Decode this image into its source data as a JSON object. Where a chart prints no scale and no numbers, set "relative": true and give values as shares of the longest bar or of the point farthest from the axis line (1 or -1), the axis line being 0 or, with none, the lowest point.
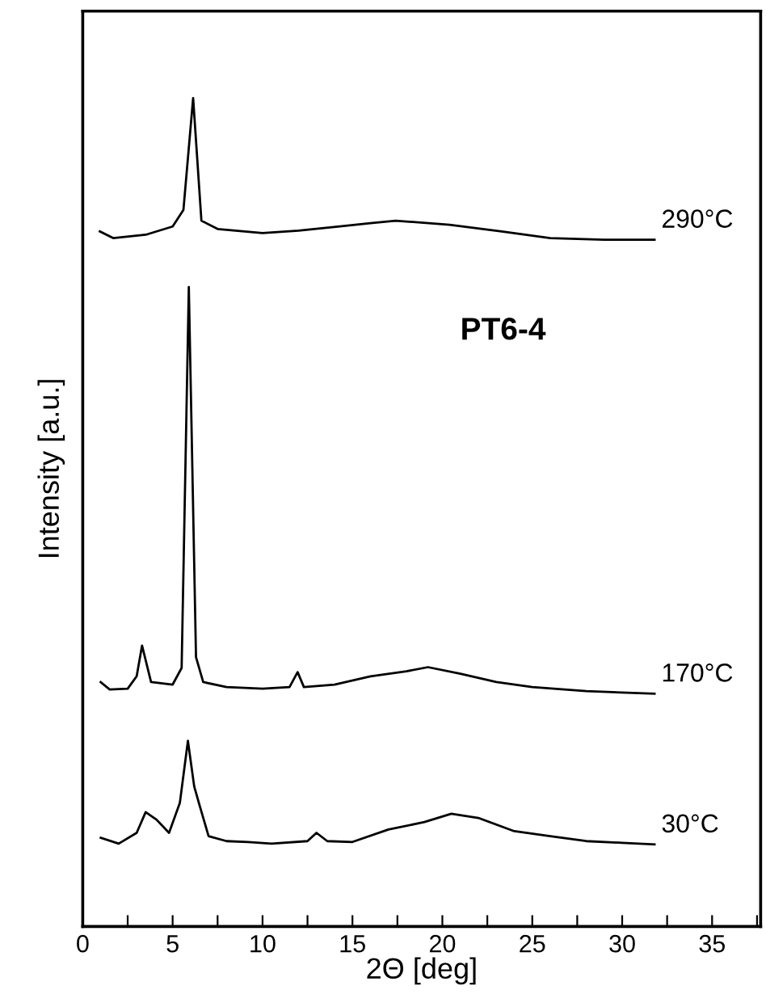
{
  "chart_data": {
    "type": "line",
    "relative": true,
    "xlabel": "2Θ [deg]",
    "ylabel": "Intensity [a.u.]",
    "annotations": [
      "PT6-4"
    ],
    "xlim": [
      0,
      37.7
    ],
    "xticks": [
      0,
      {
        "value": 2.5,
        "label": null
      },
      5,
      {
        "value": 7.5,
        "label": null
      },
      10,
      {
        "value": 12.5,
        "label": null
      },
      15,
      {
        "value": 17.5,
        "label": null
      },
      20,
      {
        "value": 22.5,
        "label": null
      },
      25,
      {
        "value": 27.5,
        "label": null
      },
      30,
      {
        "value": 32.5,
        "label": null
      },
      35,
      {
        "value": 37.5,
        "label": null
      }
    ],
    "grid": false,
    "legend": false,
    "marker": "none",
    "line_style": "solid",
    "tick_labels": "x",
    "series": [
      {
        "name": "290°C",
        "color": "#000000",
        "x": [
          0.95,
          1.69,
          3.5,
          5.0,
          5.6,
          6.14,
          6.6,
          7.5,
          10,
          12,
          14.3,
          16,
          17.4,
          20.4,
          23.3,
          26,
          29,
          31.8
        ],
        "values": [
          0.839,
          0.831,
          0.835,
          0.845,
          0.865,
          1.0,
          0.852,
          0.842,
          0.837,
          0.84,
          0.845,
          0.849,
          0.852,
          0.847,
          0.839,
          0.831,
          0.829,
          0.829
        ]
      },
      {
        "name": "170°C",
        "color": "#000000",
        "x": [
          1.0,
          1.5,
          2.5,
          3.0,
          3.3,
          3.8,
          5.0,
          5.5,
          5.9,
          6.3,
          6.7,
          8,
          10,
          11.5,
          11.95,
          12.3,
          14,
          16,
          18,
          19.2,
          21,
          23,
          25,
          28,
          31.8
        ],
        "values": [
          0.295,
          0.286,
          0.287,
          0.302,
          0.339,
          0.295,
          0.292,
          0.312,
          0.772,
          0.325,
          0.295,
          0.289,
          0.287,
          0.289,
          0.307,
          0.289,
          0.292,
          0.302,
          0.308,
          0.313,
          0.305,
          0.295,
          0.289,
          0.284,
          0.281
        ]
      },
      {
        "name": "30°C",
        "color": "#000000",
        "x": [
          1.0,
          2.0,
          3.0,
          3.5,
          4.1,
          4.8,
          5.4,
          5.85,
          6.2,
          6.5,
          7.0,
          8.0,
          9.2,
          10.5,
          12.5,
          13.0,
          13.6,
          15,
          17,
          19,
          20.5,
          22,
          24,
          26,
          28,
          30,
          31.8
        ],
        "values": [
          0.107,
          0.1,
          0.113,
          0.138,
          0.129,
          0.113,
          0.149,
          0.224,
          0.169,
          0.146,
          0.109,
          0.103,
          0.102,
          0.1,
          0.103,
          0.113,
          0.103,
          0.102,
          0.117,
          0.126,
          0.136,
          0.131,
          0.115,
          0.109,
          0.103,
          0.101,
          0.099
        ]
      }
    ]
  }
}
